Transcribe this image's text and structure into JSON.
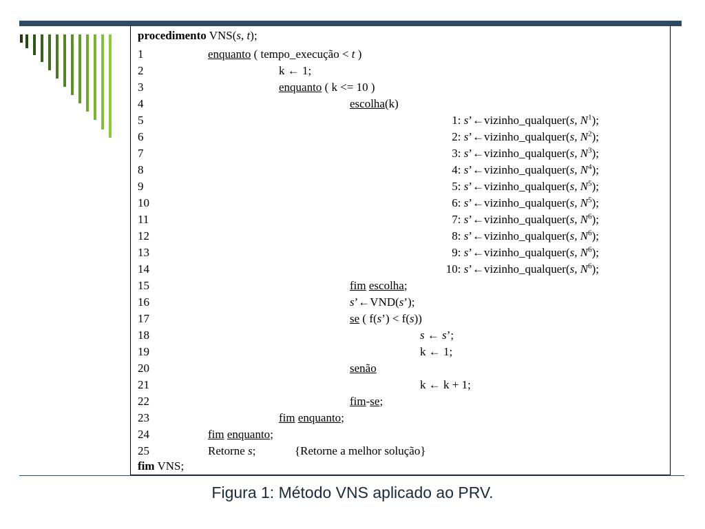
{
  "algorithm": {
    "header": {
      "keyword": "procedimento",
      "rest_prefix": " VNS(",
      "s": "s",
      "sep": ", ",
      "t": "t",
      "rest_suffix": ");"
    },
    "lines": {
      "l1": {
        "num": "1",
        "kw": "enquanto",
        "a": " ( tempo_execução < ",
        "t": "t",
        "b": " )"
      },
      "l2": {
        "num": "2",
        "text": "k ← 1;"
      },
      "l3": {
        "num": "3",
        "kw": "enquanto",
        "text": " ( k <= 10 )"
      },
      "l4": {
        "num": "4",
        "kw": "escolha",
        "text": "(k)"
      },
      "neighbors": [
        {
          "num": "5",
          "label": "1: ",
          "sup": "1"
        },
        {
          "num": "6",
          "label": "2: ",
          "sup": "2"
        },
        {
          "num": "7",
          "label": "3: ",
          "sup": "3"
        },
        {
          "num": "8",
          "label": "4: ",
          "sup": "4"
        },
        {
          "num": "9",
          "label": "5: ",
          "sup": "5"
        },
        {
          "num": "10",
          "label": "6: ",
          "sup": "5"
        },
        {
          "num": "11",
          "label": "7: ",
          "sup": "6"
        },
        {
          "num": "12",
          "label": "8: ",
          "sup": "6"
        },
        {
          "num": "13",
          "label": "9: ",
          "sup": "6"
        },
        {
          "num": "14",
          "label": "10: ",
          "sup": "6"
        }
      ],
      "neighbor_parts": {
        "s": "s",
        "mid": "’←vizinho_qualquer(",
        "s2": "s",
        "comma": ", ",
        "N": "N",
        "end": ");"
      },
      "l15": {
        "num": "15",
        "kw1": "fim",
        "kw2": "escolha",
        "end": ";"
      },
      "l16": {
        "num": "16",
        "s": "s",
        "a": "’←VND(",
        "s2": "s",
        "b": "’);"
      },
      "l17": {
        "num": "17",
        "kw": "se",
        "a": " ( f(",
        "s": "s",
        "b": "’) < f(",
        "s2": "s",
        "c": "))"
      },
      "l18": {
        "num": "18",
        "s": "s",
        "a": " ← ",
        "s2": "s",
        "b": "’;"
      },
      "l19": {
        "num": "19",
        "text": "k ← 1;"
      },
      "l20": {
        "num": "20",
        "kw": "senão"
      },
      "l21": {
        "num": "21",
        "text": "k ← k + 1;"
      },
      "l22": {
        "num": "22",
        "kw1": "fim",
        "dash": "-",
        "kw2": "se",
        "end": ";"
      },
      "l23": {
        "num": "23",
        "kw1": "fim",
        "kw2": "enquanto",
        "end": ";"
      },
      "l24": {
        "num": "24",
        "kw1": "fim",
        "kw2": "enquanto",
        "end": ";"
      },
      "l25": {
        "num": "25",
        "a": "Retorne ",
        "s": "s",
        "b": ";",
        "comment": "{Retorne a melhor solução}"
      }
    },
    "footer": {
      "keyword": "fim",
      "rest": " VNS;"
    }
  },
  "caption": "Figura 1: Método VNS aplicado ao PRV.",
  "colors": {
    "top_bar": "#2f4a64",
    "deco_dark": "#1e3d10",
    "deco_light": "#8ccc3c"
  }
}
